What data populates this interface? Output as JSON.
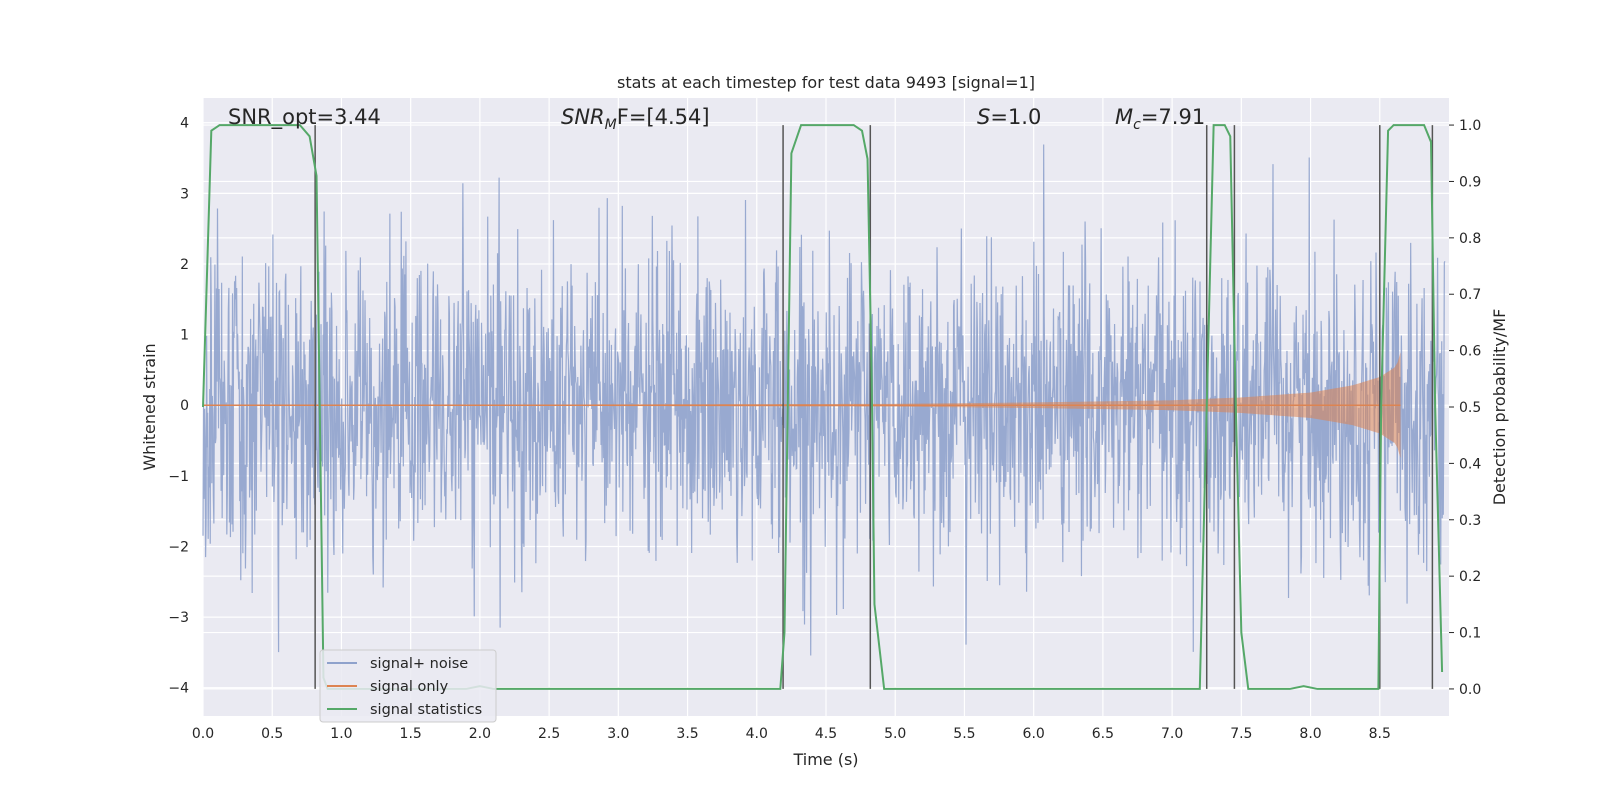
{
  "chart_data": {
    "type": "line",
    "title": "stats at each timestep for test data 9493 [signal=1]",
    "xlabel": "Time (s)",
    "ylabel": "Whitened strain",
    "ylabel_right": "Detection probability/MF",
    "xlim": [
      0.0,
      9.0
    ],
    "ylim": [
      -4.4,
      4.35
    ],
    "ylim_right": [
      -0.048,
      1.048
    ],
    "xticks": [
      "0.0",
      "0.5",
      "1.0",
      "1.5",
      "2.0",
      "2.5",
      "3.0",
      "3.5",
      "4.0",
      "4.5",
      "5.0",
      "5.5",
      "6.0",
      "6.5",
      "7.0",
      "7.5",
      "8.0",
      "8.5"
    ],
    "yticks": [
      "4",
      "3",
      "2",
      "1",
      "0",
      "−1",
      "−2",
      "−3",
      "−4"
    ],
    "yticks_right": [
      "1.0",
      "0.9",
      "0.8",
      "0.7",
      "0.6",
      "0.5",
      "0.4",
      "0.3",
      "0.2",
      "0.1",
      "0.0"
    ],
    "grid": true,
    "legend_position": "lower-left",
    "annotations": {
      "snr_opt": "SNR_opt=3.44",
      "snr_mf_prefix": "SNR",
      "snr_mf_sub": "M",
      "snr_mf_suffix": "F=[4.54]",
      "s_label": "S",
      "s_value": "=1.0",
      "mc_label": "M",
      "mc_sub": "c",
      "mc_value": "=7.91"
    },
    "series": [
      {
        "name": "signal+ noise",
        "color": "#8fa2cc",
        "note": "whitened noisy strain, approx. Gaussian with sigma ~1.1 over 0–9 s, peaks to ±4",
        "x_range": [
          0.0,
          8.97
        ],
        "amplitude_max": 4.0
      },
      {
        "name": "signal only",
        "color": "#dd8452",
        "note": "chirp, near 0 until ~5 s, grows to ±0.8 at ~8.65 s then ends",
        "envelope": [
          [
            0.0,
            0.0
          ],
          [
            5.0,
            0.02
          ],
          [
            6.0,
            0.04
          ],
          [
            7.0,
            0.07
          ],
          [
            7.5,
            0.11
          ],
          [
            8.0,
            0.18
          ],
          [
            8.3,
            0.28
          ],
          [
            8.5,
            0.4
          ],
          [
            8.62,
            0.55
          ],
          [
            8.65,
            0.75
          ],
          [
            8.67,
            0.0
          ]
        ]
      },
      {
        "name": "signal statistics",
        "color": "#55a868",
        "axis": "right",
        "points": [
          [
            0.0,
            0.5
          ],
          [
            0.06,
            0.99
          ],
          [
            0.12,
            1.0
          ],
          [
            0.7,
            1.0
          ],
          [
            0.77,
            0.98
          ],
          [
            0.82,
            0.91
          ],
          [
            0.87,
            0.02
          ],
          [
            0.9,
            0.0
          ],
          [
            1.6,
            0.0
          ],
          [
            1.9,
            0.0
          ],
          [
            2.0,
            0.005
          ],
          [
            2.1,
            0.0
          ],
          [
            2.5,
            0.0
          ],
          [
            4.17,
            0.0
          ],
          [
            4.2,
            0.1
          ],
          [
            4.25,
            0.95
          ],
          [
            4.32,
            1.0
          ],
          [
            4.7,
            1.0
          ],
          [
            4.76,
            0.99
          ],
          [
            4.8,
            0.94
          ],
          [
            4.83,
            0.55
          ],
          [
            4.85,
            0.15
          ],
          [
            4.92,
            0.0
          ],
          [
            7.2,
            0.0
          ],
          [
            7.25,
            0.5
          ],
          [
            7.3,
            1.0
          ],
          [
            7.38,
            1.0
          ],
          [
            7.42,
            0.98
          ],
          [
            7.46,
            0.5
          ],
          [
            7.5,
            0.1
          ],
          [
            7.55,
            0.0
          ],
          [
            7.85,
            0.0
          ],
          [
            7.95,
            0.005
          ],
          [
            8.05,
            0.0
          ],
          [
            8.49,
            0.0
          ],
          [
            8.51,
            0.5
          ],
          [
            8.56,
            0.99
          ],
          [
            8.6,
            1.0
          ],
          [
            8.82,
            1.0
          ],
          [
            8.87,
            0.97
          ],
          [
            8.9,
            0.5
          ],
          [
            8.95,
            0.03
          ]
        ]
      }
    ],
    "vertical_lines_x": [
      0.81,
      4.19,
      4.82,
      7.25,
      7.45,
      8.5,
      8.88
    ]
  }
}
